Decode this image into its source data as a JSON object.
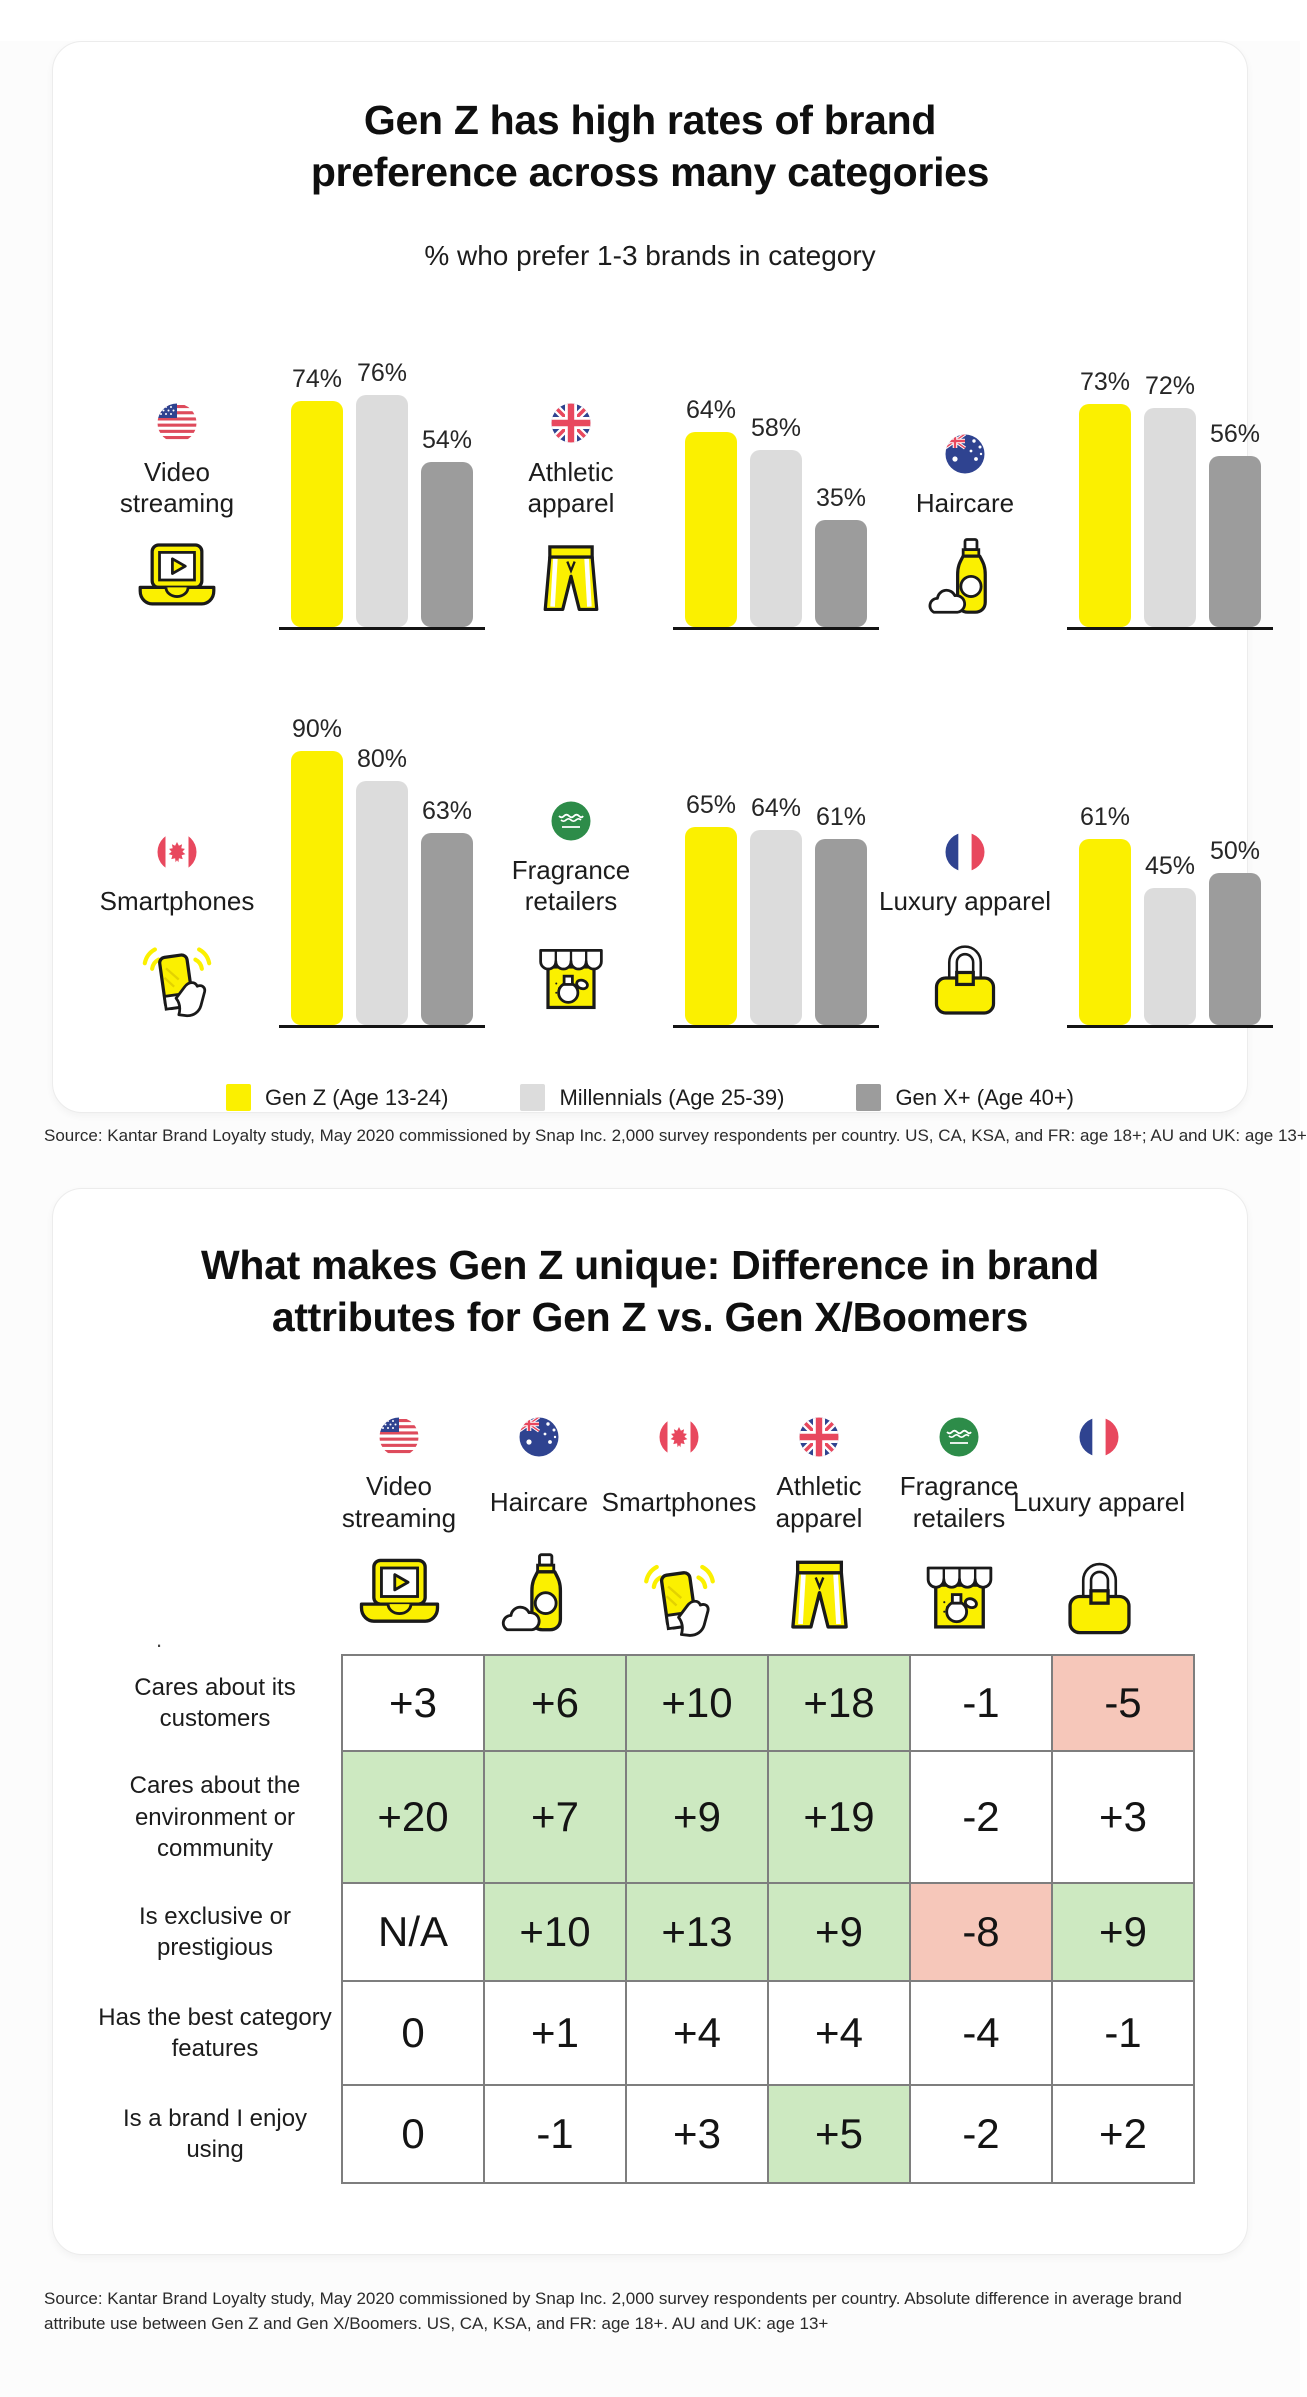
{
  "panel1": {
    "title": "Gen Z has high rates of brand preference across many categories",
    "subtitle": "% who prefer 1-3 brands in category",
    "charts": [
      {
        "category": "Video streaming",
        "flag": "us-flag",
        "icon": "laptop-play-icon",
        "bars": [
          "74%",
          "76%",
          "54%"
        ]
      },
      {
        "category": "Athletic apparel",
        "flag": "uk-flag",
        "icon": "athletic-shorts-icon",
        "bars": [
          "64%",
          "58%",
          "35%"
        ]
      },
      {
        "category": "Haircare",
        "flag": "au-flag",
        "icon": "shampoo-bottle-icon",
        "bars": [
          "73%",
          "72%",
          "56%"
        ]
      },
      {
        "category": "Smartphones",
        "flag": "ca-flag",
        "icon": "phone-in-hand-icon",
        "bars": [
          "90%",
          "80%",
          "63%"
        ]
      },
      {
        "category": "Fragrance retailers",
        "flag": "ksa-flag",
        "icon": "storefront-perfume-icon",
        "bars": [
          "65%",
          "64%",
          "61%"
        ]
      },
      {
        "category": "Luxury apparel",
        "flag": "fr-flag",
        "icon": "handbag-icon",
        "bars": [
          "61%",
          "45%",
          "50%"
        ]
      }
    ],
    "legend": [
      {
        "label": "Gen Z (Age 13-24)",
        "color": "#FBF000"
      },
      {
        "label": "Millennials (Age 25-39)",
        "color": "#DCDCDC"
      },
      {
        "label": "Gen X+ (Age 40+)",
        "color": "#9C9C9C"
      }
    ],
    "source": "Source: Kantar Brand Loyalty study, May 2020 commissioned by Snap Inc. 2,000 survey respondents per country. US, CA, KSA, and FR: age 18+; AU and UK: age 13+"
  },
  "panel2": {
    "title": "What makes Gen Z unique: Difference in brand attributes for Gen Z vs. Gen X/Boomers",
    "columns": [
      {
        "category": "Video streaming",
        "flag": "us-flag",
        "icon": "laptop-play-icon"
      },
      {
        "category": "Haircare",
        "flag": "au-flag",
        "icon": "shampoo-bottle-icon"
      },
      {
        "category": "Smartphones",
        "flag": "ca-flag",
        "icon": "phone-in-hand-icon"
      },
      {
        "category": "Athletic apparel",
        "flag": "uk-flag",
        "icon": "athletic-shorts-icon"
      },
      {
        "category": "Fragrance retailers",
        "flag": "ksa-flag",
        "icon": "storefront-perfume-icon"
      },
      {
        "category": "Luxury apparel",
        "flag": "fr-flag",
        "icon": "handbag-icon"
      }
    ],
    "rows": [
      {
        "label": "Cares about its customers",
        "cells": [
          {
            "value": "+3",
            "tone": "neutral"
          },
          {
            "value": "+6",
            "tone": "pos"
          },
          {
            "value": "+10",
            "tone": "pos"
          },
          {
            "value": "+18",
            "tone": "pos"
          },
          {
            "value": "-1",
            "tone": "neutral"
          },
          {
            "value": "-5",
            "tone": "neg"
          }
        ]
      },
      {
        "label": "Cares about the environment or community",
        "cells": [
          {
            "value": "+20",
            "tone": "pos"
          },
          {
            "value": "+7",
            "tone": "pos"
          },
          {
            "value": "+9",
            "tone": "pos"
          },
          {
            "value": "+19",
            "tone": "pos"
          },
          {
            "value": "-2",
            "tone": "neutral"
          },
          {
            "value": "+3",
            "tone": "neutral"
          }
        ]
      },
      {
        "label": "Is exclusive or prestigious",
        "cells": [
          {
            "value": "N/A",
            "tone": "neutral"
          },
          {
            "value": "+10",
            "tone": "pos"
          },
          {
            "value": "+13",
            "tone": "pos"
          },
          {
            "value": "+9",
            "tone": "pos"
          },
          {
            "value": "-8",
            "tone": "neg"
          },
          {
            "value": "+9",
            "tone": "pos"
          }
        ]
      },
      {
        "label": "Has the best category features",
        "cells": [
          {
            "value": "0",
            "tone": "neutral"
          },
          {
            "value": "+1",
            "tone": "neutral"
          },
          {
            "value": "+4",
            "tone": "neutral"
          },
          {
            "value": "+4",
            "tone": "neutral"
          },
          {
            "value": "-4",
            "tone": "neutral"
          },
          {
            "value": "-1",
            "tone": "neutral"
          }
        ]
      },
      {
        "label": "Is a brand I enjoy using",
        "cells": [
          {
            "value": "0",
            "tone": "neutral"
          },
          {
            "value": "-1",
            "tone": "neutral"
          },
          {
            "value": "+3",
            "tone": "neutral"
          },
          {
            "value": "+5",
            "tone": "pos"
          },
          {
            "value": "-2",
            "tone": "neutral"
          },
          {
            "value": "+2",
            "tone": "neutral"
          }
        ]
      }
    ],
    "stray_mark": ".",
    "source": "Source: Kantar Brand Loyalty study, May 2020 commissioned by Snap Inc. 2,000 survey respondents per country. Absolute difference in average brand attribute use between Gen Z and Gen X/Boomers. US, CA, KSA, and FR: age 18+. AU and UK: age 13+"
  },
  "colors": {
    "gen_z_yellow": "#FBF000",
    "millennials_gray": "#DCDCDC",
    "gen_x_gray": "#9C9C9C",
    "cell_positive_green": "#CDE9C1",
    "cell_negative_red": "#F6C7BA",
    "table_border_gray": "#7E7E7E"
  },
  "chart_data": [
    {
      "type": "bar",
      "title": "Gen Z has high rates of brand preference across many categories",
      "subtitle": "% who prefer 1-3 brands in category",
      "categories": [
        "Video streaming (US)",
        "Athletic apparel (UK)",
        "Haircare (AU)",
        "Smartphones (CA)",
        "Fragrance retailers (KSA)",
        "Luxury apparel (FR)"
      ],
      "series": [
        {
          "name": "Gen Z (Age 13-24)",
          "values": [
            74,
            64,
            73,
            90,
            65,
            61
          ]
        },
        {
          "name": "Millennials (Age 25-39)",
          "values": [
            76,
            58,
            72,
            80,
            64,
            45
          ]
        },
        {
          "name": "Gen X+ (Age 40+)",
          "values": [
            54,
            35,
            56,
            63,
            61,
            50
          ]
        }
      ],
      "ylabel": "% who prefer 1-3 brands in category",
      "ylim": [
        0,
        100
      ],
      "grid": false,
      "legend_position": "bottom",
      "layout": "2 rows x 3 columns of small multiples with data labels above bars"
    },
    {
      "type": "table",
      "title": "What makes Gen Z unique: Difference in brand attributes for Gen Z vs. Gen X/Boomers",
      "columns": [
        "Video streaming",
        "Haircare",
        "Smartphones",
        "Athletic apparel",
        "Fragrance retailers",
        "Luxury apparel"
      ],
      "rows": [
        {
          "label": "Cares about its customers",
          "values": [
            "+3",
            "+6",
            "+10",
            "+18",
            "-1",
            "-5"
          ]
        },
        {
          "label": "Cares about the environment or community",
          "values": [
            "+20",
            "+7",
            "+9",
            "+19",
            "-2",
            "+3"
          ]
        },
        {
          "label": "Is exclusive or prestigious",
          "values": [
            "N/A",
            "+10",
            "+13",
            "+9",
            "-8",
            "+9"
          ]
        },
        {
          "label": "Has the best category features",
          "values": [
            "0",
            "+1",
            "+4",
            "+4",
            "-4",
            "-1"
          ]
        },
        {
          "label": "Is a brand I enjoy using",
          "values": [
            "0",
            "-1",
            "+3",
            "+5",
            "-2",
            "+2"
          ]
        }
      ],
      "highlight": "green cells = strong positive difference, red cells = strong negative difference"
    }
  ]
}
